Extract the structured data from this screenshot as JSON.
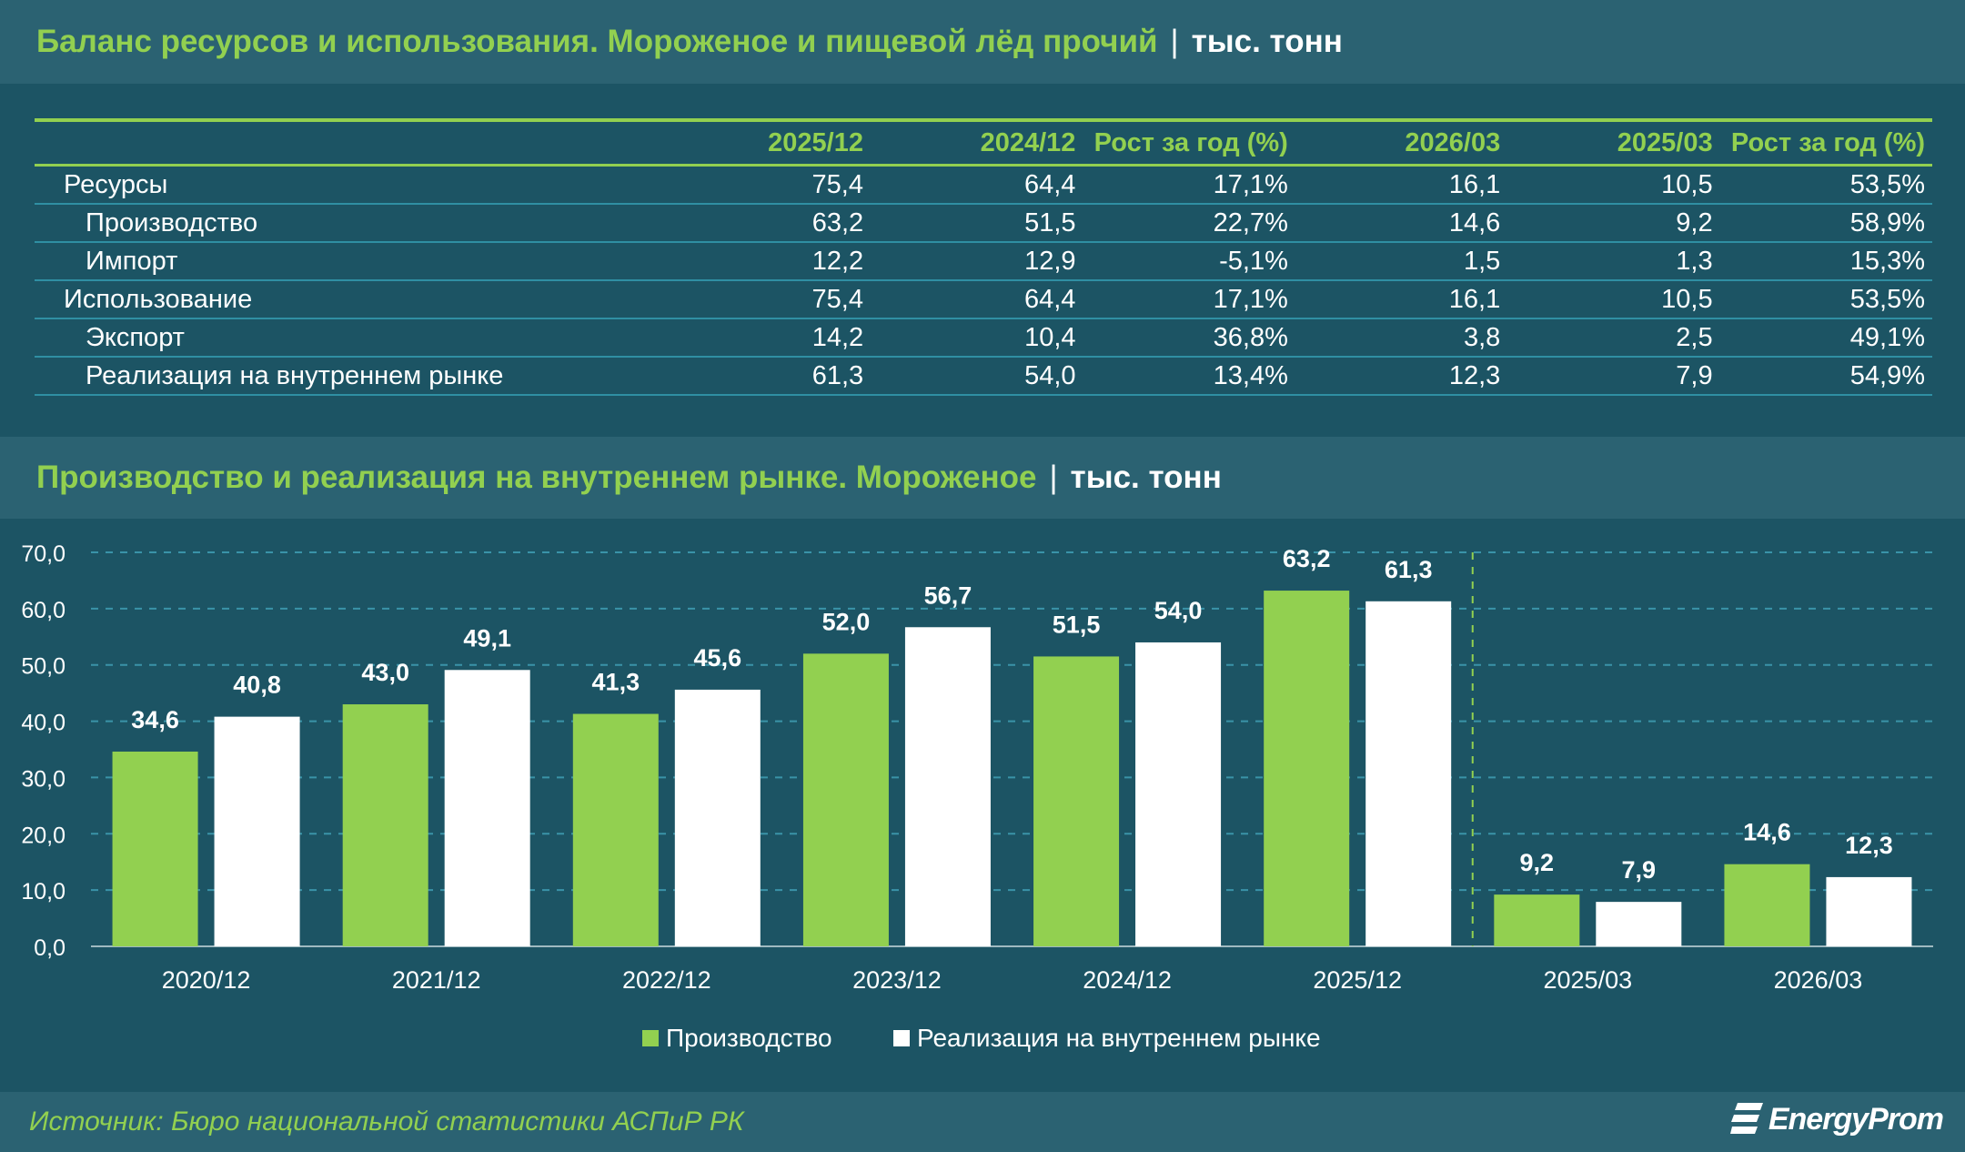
{
  "table_section": {
    "title": "Баланс ресурсов и использования. Мороженое и пищевой лёд прочий",
    "separator": "|",
    "unit": "тыс. тонн",
    "headers": [
      "",
      "2025/12",
      "2024/12",
      "Рост за год (%)",
      "2026/03",
      "2025/03",
      "Рост за год (%)"
    ],
    "rows": [
      {
        "label": "Ресурсы",
        "values": [
          "75,4",
          "64,4",
          "17,1%",
          "16,1",
          "10,5",
          "53,5%"
        ]
      },
      {
        "label": "Производство",
        "values": [
          "63,2",
          "51,5",
          "22,7%",
          "14,6",
          "9,2",
          "58,9%"
        ]
      },
      {
        "label": "Импорт",
        "values": [
          "12,2",
          "12,9",
          "-5,1%",
          "1,5",
          "1,3",
          "15,3%"
        ]
      },
      {
        "label": "Использование",
        "values": [
          "75,4",
          "64,4",
          "17,1%",
          "16,1",
          "10,5",
          "53,5%"
        ]
      },
      {
        "label": "Экспорт",
        "values": [
          "14,2",
          "10,4",
          "36,8%",
          "3,8",
          "2,5",
          "49,1%"
        ]
      },
      {
        "label": "Реализация на внутреннем рынке",
        "values": [
          "61,3",
          "54,0",
          "13,4%",
          "12,3",
          "7,9",
          "54,9%"
        ]
      }
    ]
  },
  "chart_section": {
    "title": "Производство и реализация на внутреннем рынке. Мороженое",
    "separator": "|",
    "unit": "тыс. тонн"
  },
  "chart_data": {
    "type": "bar",
    "categories": [
      "2020/12",
      "2021/12",
      "2022/12",
      "2023/12",
      "2024/12",
      "2025/12",
      "2025/03",
      "2026/03"
    ],
    "series": [
      {
        "name": "Производство",
        "color": "#92d050",
        "values": [
          34.6,
          43.0,
          41.3,
          52.0,
          51.5,
          63.2,
          9.2,
          14.6
        ],
        "labels": [
          "34,6",
          "43,0",
          "41,3",
          "52,0",
          "51,5",
          "63,2",
          "9,2",
          "14,6"
        ]
      },
      {
        "name": "Реализация на внутреннем рынке",
        "color": "#ffffff",
        "values": [
          40.8,
          49.1,
          45.6,
          56.7,
          54.0,
          61.3,
          7.9,
          12.3
        ],
        "labels": [
          "40,8",
          "49,1",
          "45,6",
          "56,7",
          "54,0",
          "61,3",
          "7,9",
          "12,3"
        ]
      }
    ],
    "ylim": [
      0,
      70
    ],
    "yticks": [
      "0,0",
      "10,0",
      "20,0",
      "30,0",
      "40,0",
      "50,0",
      "60,0",
      "70,0"
    ],
    "grid": true,
    "legend": "bottom-center"
  },
  "footer": {
    "source": "Источник: Бюро национальной статистики АСПиР РК",
    "logo": "EnergyProm"
  }
}
